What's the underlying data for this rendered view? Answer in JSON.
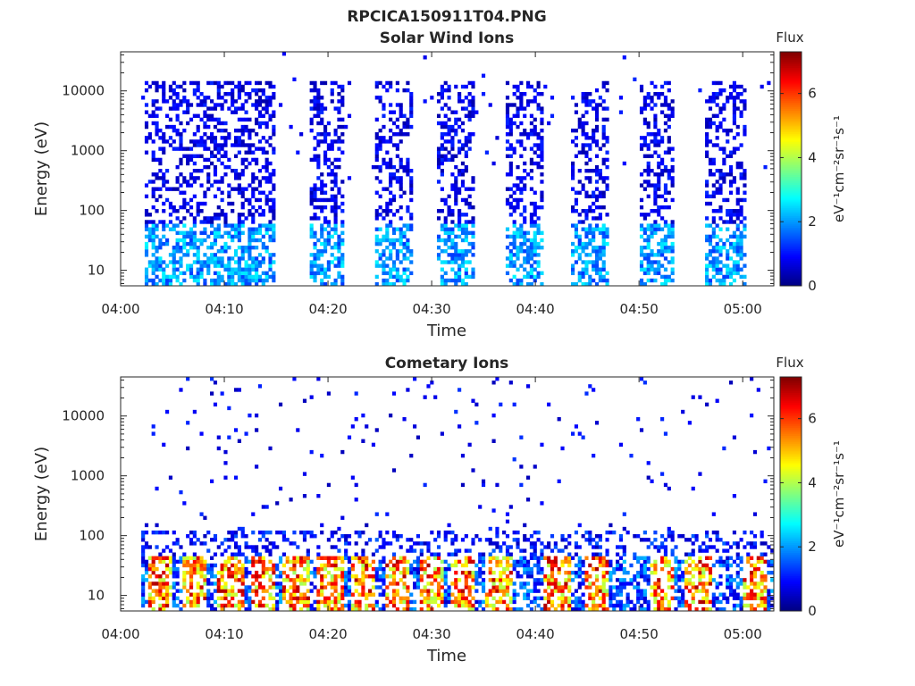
{
  "figure_title": "RPCICA150911T04.PNG",
  "chart_data": [
    {
      "type": "heatmap",
      "title": "Solar Wind Ions",
      "xlabel": "Time",
      "ylabel": "Energy (eV)",
      "x_ticks": [
        "04:00",
        "04:10",
        "04:20",
        "04:30",
        "04:40",
        "04:50",
        "05:00"
      ],
      "x_range_minutes": [
        0,
        63
      ],
      "y_scale": "log",
      "y_range": [
        5.5,
        45000
      ],
      "y_ticks": [
        "10",
        "100",
        "1000",
        "10000"
      ],
      "y_tick_values": [
        10,
        100,
        1000,
        10000
      ],
      "colorbar": {
        "title": "Flux",
        "units": "eV⁻¹cm⁻²sr⁻¹s⁻¹",
        "min": 0,
        "max": 7.3,
        "ticks": [
          "0",
          "2",
          "4",
          "6"
        ],
        "tick_values": [
          0,
          2,
          4,
          6
        ],
        "colormap": "jet"
      },
      "bursts_minutes": [
        [
          2.4,
          14.8
        ],
        [
          18.2,
          21.5
        ],
        [
          24.6,
          28.3
        ],
        [
          30.6,
          34.2
        ],
        [
          37.3,
          40.9
        ],
        [
          43.6,
          47.2
        ],
        [
          50.0,
          53.3
        ],
        [
          56.4,
          60.2
        ]
      ]
    },
    {
      "type": "heatmap",
      "title": "Cometary Ions",
      "xlabel": "Time",
      "ylabel": "Energy (eV)",
      "x_ticks": [
        "04:00",
        "04:10",
        "04:20",
        "04:30",
        "04:40",
        "04:50",
        "05:00"
      ],
      "x_range_minutes": [
        0,
        63
      ],
      "y_scale": "log",
      "y_range": [
        5.5,
        45000
      ],
      "y_ticks": [
        "10",
        "100",
        "1000",
        "10000"
      ],
      "y_tick_values": [
        10,
        100,
        1000,
        10000
      ],
      "colorbar": {
        "title": "Flux",
        "units": "eV⁻¹cm⁻²sr⁻¹s⁻¹",
        "min": 0,
        "max": 7.3,
        "ticks": [
          "0",
          "2",
          "4",
          "6"
        ],
        "tick_values": [
          0,
          2,
          4,
          6
        ],
        "colormap": "jet"
      },
      "hotspots_minutes": [
        3.8,
        7.2,
        10.6,
        13.7,
        16.9,
        20.2,
        23.5,
        26.8,
        30.0,
        33.0,
        36.5,
        42.1,
        45.9,
        52.3,
        55.7,
        61.2
      ]
    }
  ]
}
